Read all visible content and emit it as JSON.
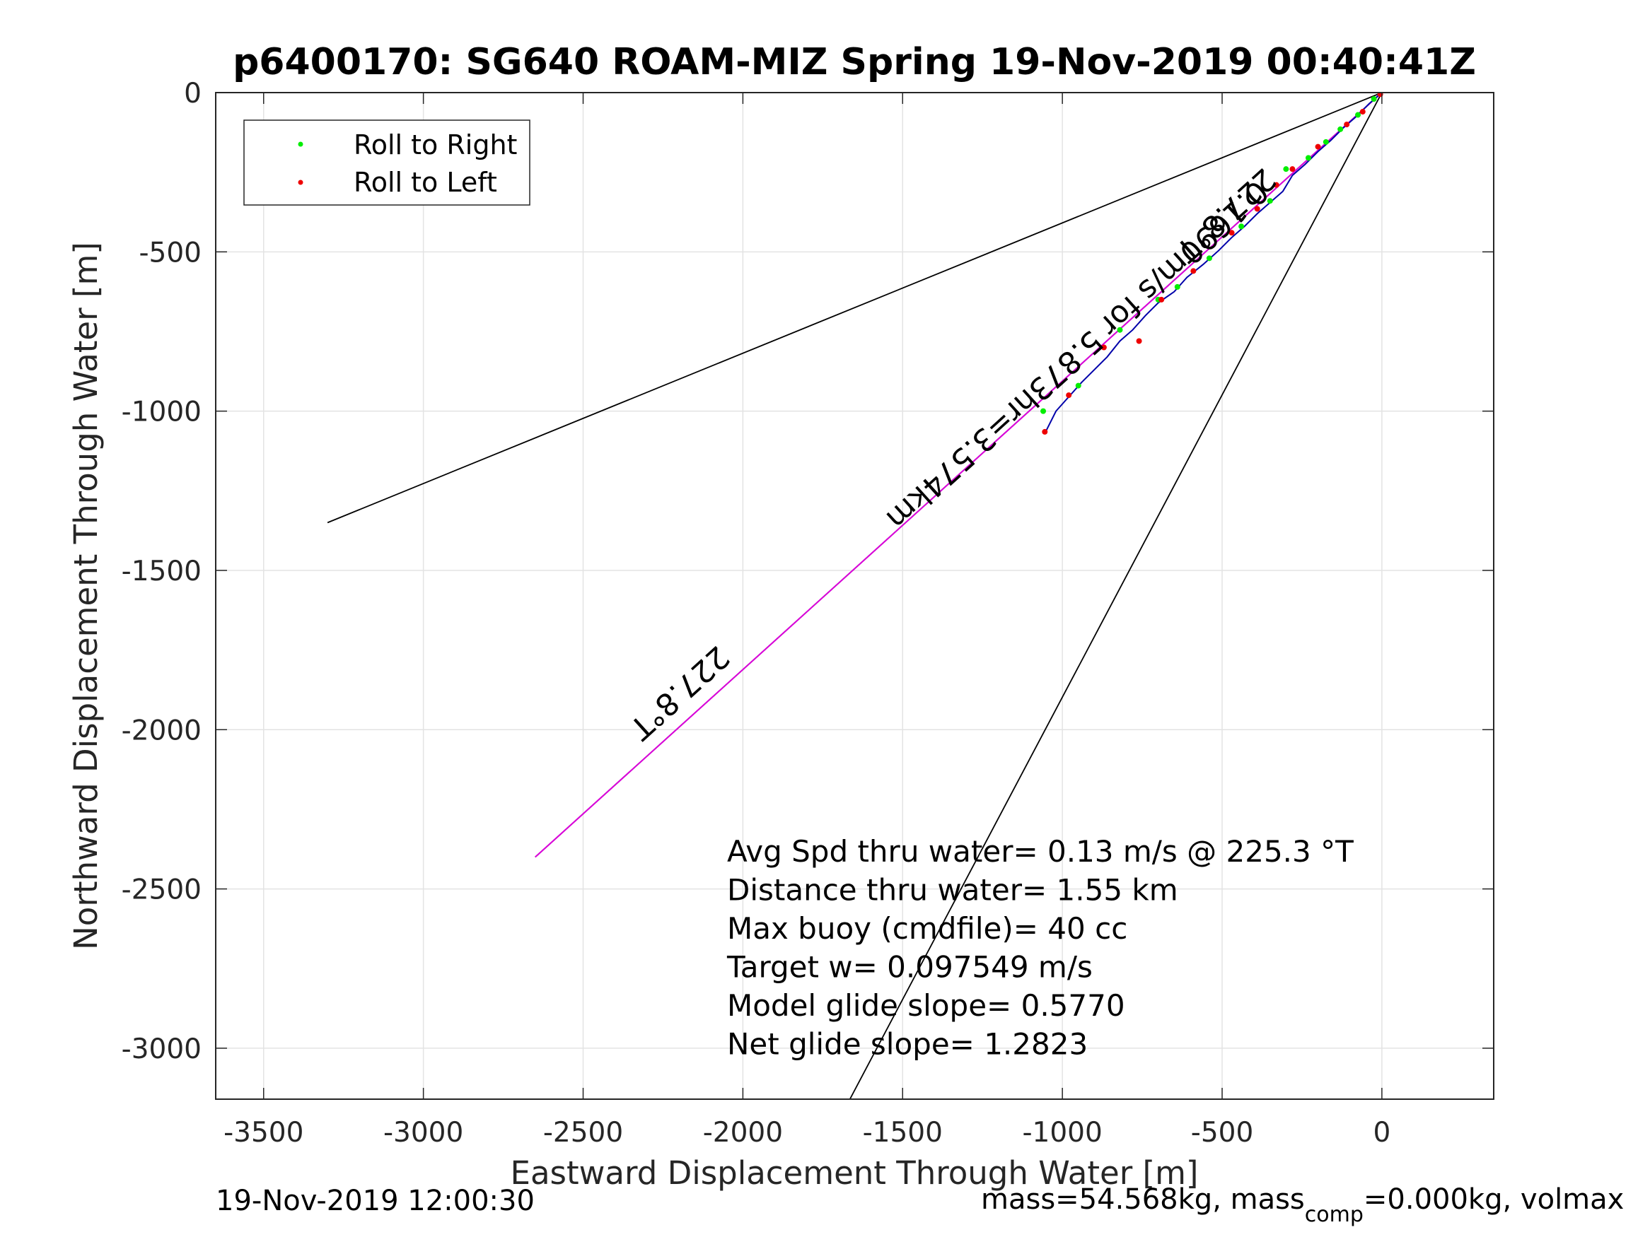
{
  "chart_data": {
    "type": "line",
    "title": "p6400170: SG640 ROAM-MIZ Spring 19-Nov-2019 00:40:41Z",
    "xlabel": "Eastward Displacement Through Water [m]",
    "ylabel": "Northward Displacement Through Water [m]",
    "xlim": [
      -3650,
      350
    ],
    "ylim": [
      -3160,
      0
    ],
    "grid": true,
    "x_ticks": [
      -3500,
      -3000,
      -2500,
      -2000,
      -1500,
      -1000,
      -500,
      0
    ],
    "x_tick_labels": [
      "-3500",
      "-3000",
      "-2500",
      "-2000",
      "-1500",
      "-1000",
      "-500",
      "0"
    ],
    "y_ticks": [
      0,
      -500,
      -1000,
      -1500,
      -2000,
      -2500,
      -3000
    ],
    "y_tick_labels": [
      "0",
      "-500",
      "-1000",
      "-1500",
      "-2000",
      "-2500",
      "-3000"
    ],
    "legend": {
      "position": "top-left",
      "entries": [
        {
          "label": "Roll to Right",
          "color": "#00ee00"
        },
        {
          "label": "Roll to Left",
          "color": "#ee0000"
        }
      ]
    },
    "lines": [
      {
        "name": "bearing-fan-upper",
        "color": "#000000",
        "x": [
          0,
          -3300
        ],
        "y": [
          0,
          -1350
        ]
      },
      {
        "name": "bearing-fan-center",
        "color": "#000000",
        "x": [
          0,
          -2650
        ],
        "y": [
          0,
          -2400
        ]
      },
      {
        "name": "bearing-fan-lower",
        "color": "#000000",
        "x": [
          0,
          -1665
        ],
        "y": [
          0,
          -3160
        ]
      },
      {
        "name": "current-vector",
        "color": "#dd00dd",
        "x": [
          0,
          -2650
        ],
        "y": [
          0,
          -2400
        ]
      }
    ],
    "track": {
      "color": "#0000aa",
      "x": [
        0,
        -40,
        -80,
        -120,
        -160,
        -200,
        -240,
        -280,
        -310,
        -350,
        -390,
        -430,
        -470,
        -510,
        -560,
        -610,
        -650,
        -700,
        -740,
        -780,
        -820,
        -860,
        -900,
        -940,
        -980,
        -1020,
        -1050
      ],
      "y": [
        0,
        -35,
        -75,
        -110,
        -150,
        -185,
        -225,
        -260,
        -310,
        -345,
        -380,
        -420,
        -455,
        -495,
        -540,
        -580,
        -625,
        -660,
        -700,
        -745,
        -780,
        -830,
        -870,
        -910,
        -955,
        -1000,
        -1060
      ]
    },
    "roll_right_points": {
      "x": [
        -25,
        -75,
        -130,
        -175,
        -230,
        -300,
        -350,
        -440,
        -540,
        -640,
        -700,
        -820,
        -950,
        -1060
      ],
      "y": [
        -20,
        -70,
        -115,
        -155,
        -205,
        -240,
        -340,
        -420,
        -520,
        -610,
        -650,
        -745,
        -920,
        -1000
      ]
    },
    "roll_left_points": {
      "x": [
        -5,
        -60,
        -110,
        -200,
        -280,
        -330,
        -390,
        -470,
        -590,
        -690,
        -760,
        -870,
        -980,
        -1055
      ],
      "y": [
        -5,
        -60,
        -100,
        -170,
        -240,
        -290,
        -365,
        -440,
        -560,
        -650,
        -780,
        -800,
        -950,
        -1065
      ]
    },
    "annotations": [
      {
        "text": "227.8°T",
        "x": -510,
        "y": -360,
        "rotation": 137.8
      },
      {
        "text": "0.1690m/s for 5.873hr=3.574km",
        "x": -975,
        "y": -800,
        "rotation": 137.8
      },
      {
        "text": "227.8°T",
        "x": -2220,
        "y": -1860,
        "rotation": 137.8
      }
    ],
    "stats_lines": [
      "Avg Spd thru water=  0.13 m/s @ 225.3 °T",
      "Distance thru water=  1.55 km",
      "Max buoy (cmdfile)= 40 cc",
      "Target w= 0.097549 m/s",
      "Model glide slope= 0.5770",
      "Net glide slope= 1.2823"
    ]
  },
  "footer": {
    "timestamp": "19-Nov-2019 12:00:30",
    "mass_prefix": "mass=54.568kg, mass",
    "mass_sub": "comp",
    "mass_suffix": "=0.000kg, volmax"
  }
}
